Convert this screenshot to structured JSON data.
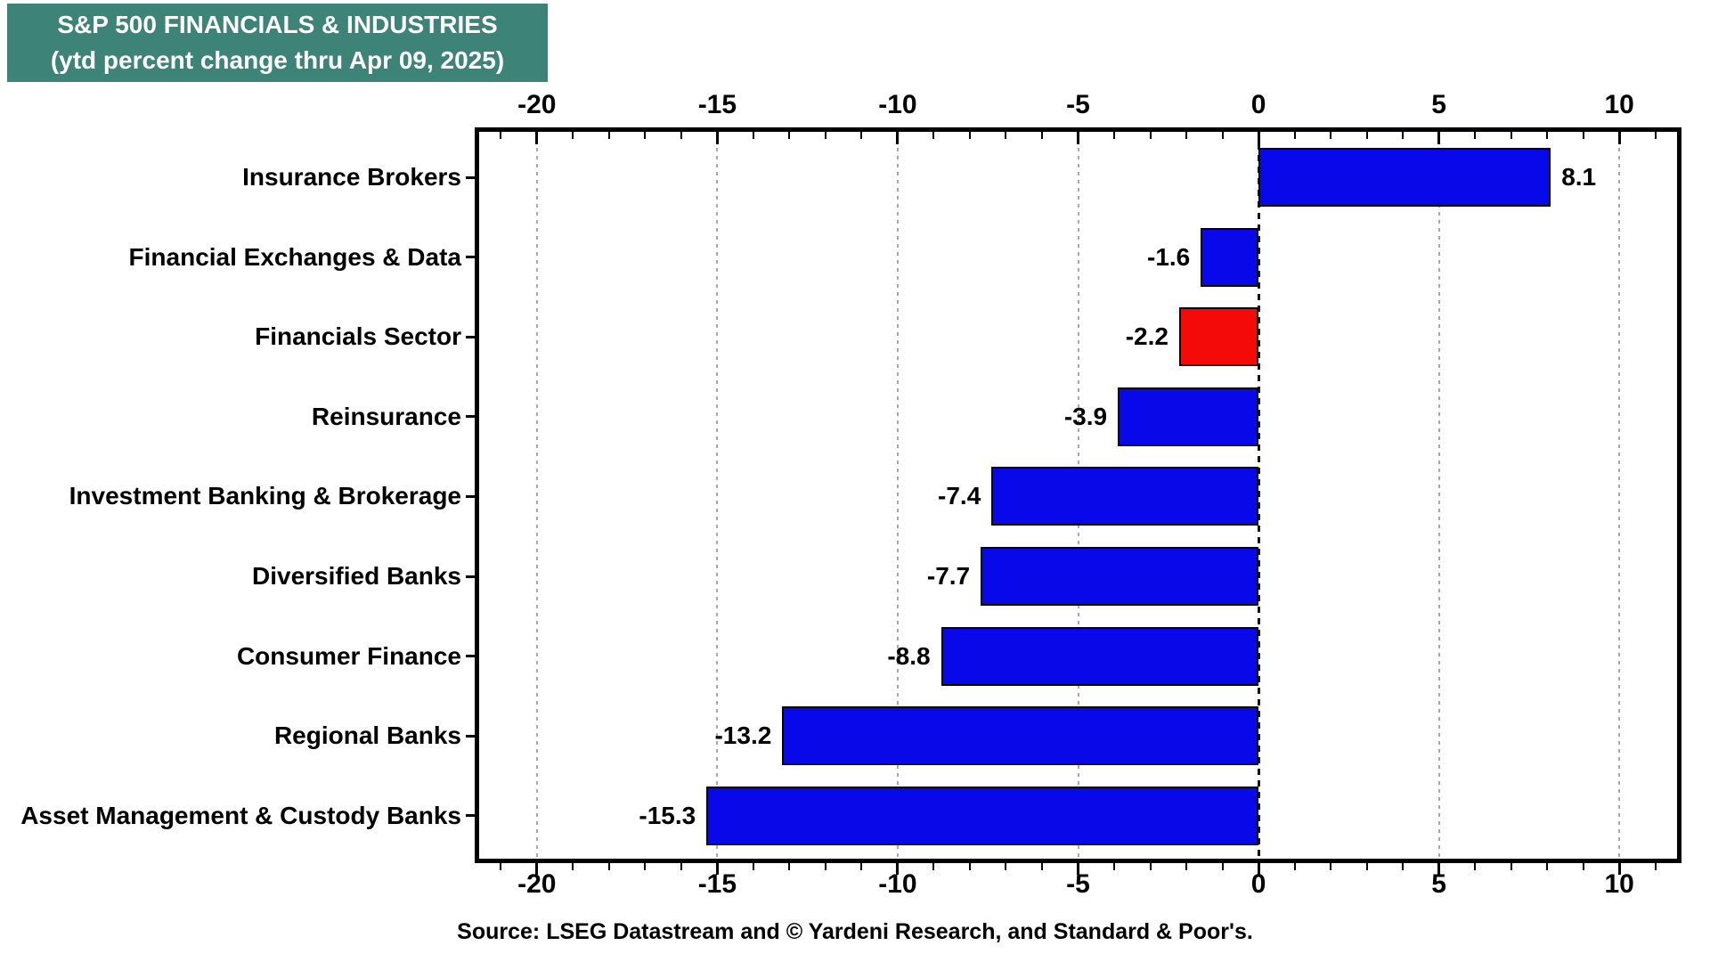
{
  "header": {
    "title_line1": "S&P 500 FINANCIALS & INDUSTRIES",
    "title_line2": "(ytd percent change thru Apr 09, 2025)",
    "bg_color": "#3E8377",
    "text_color": "#FFFFFF"
  },
  "chart_data": {
    "type": "bar",
    "orientation": "horizontal",
    "title": "S&P 500 FINANCIALS & INDUSTRIES (ytd percent change thru Apr 09, 2025)",
    "categories": [
      "Insurance Brokers",
      "Financial Exchanges & Data",
      "Financials Sector",
      "Reinsurance",
      "Investment Banking & Brokerage",
      "Diversified Banks",
      "Consumer Finance",
      "Regional Banks",
      "Asset Management & Custody Banks"
    ],
    "values": [
      8.1,
      -1.6,
      -2.2,
      -3.9,
      -7.4,
      -7.7,
      -8.8,
      -13.2,
      -15.3
    ],
    "value_labels": [
      "8.1",
      "-1.6",
      "-2.2",
      "-3.9",
      "-7.4",
      "-7.7",
      "-8.8",
      "-13.2",
      "-15.3"
    ],
    "bar_colors": [
      "#0808E8",
      "#0808E8",
      "#F50A0A",
      "#0808E8",
      "#0808E8",
      "#0808E8",
      "#0808E8",
      "#0808E8",
      "#0808E8"
    ],
    "highlighted_category": "Financials Sector",
    "default_bar_color": "#0808E8",
    "highlight_bar_color": "#F50A0A",
    "bar_border_color": "#000000",
    "xlim": [
      -21.6,
      11.6
    ],
    "x_major_ticks": [
      -20,
      -15,
      -10,
      -5,
      0,
      5,
      10
    ],
    "x_major_tick_labels": [
      "-20",
      "-15",
      "-10",
      "-5",
      "0",
      "5",
      "10"
    ],
    "x_minor_tick_step": 1,
    "gridline_values": [
      -20,
      -15,
      -10,
      -5,
      5,
      10
    ],
    "zero_line_value": 0,
    "grid_color": "#A8A8A8",
    "axes_with_ticks": [
      "top",
      "bottom"
    ],
    "grid_style": "dotted-vertical",
    "legend": "none"
  },
  "source": {
    "text": "Source: LSEG Datastream and © Yardeni Research, and Standard & Poor's."
  }
}
